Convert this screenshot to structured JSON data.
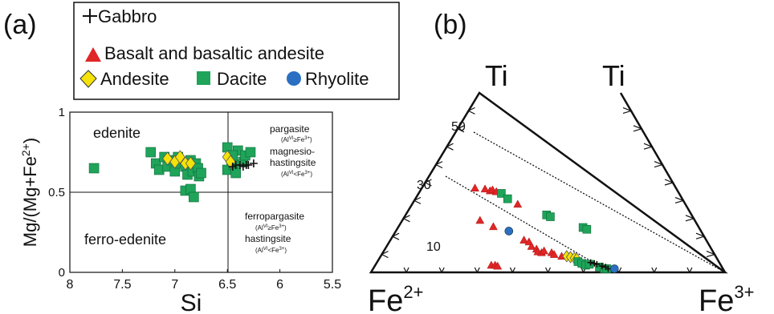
{
  "panel_labels": {
    "a": "(a)",
    "b": "(b)"
  },
  "legend": {
    "gabbro": "Gabbro",
    "basalt": "Basalt and basaltic andesite",
    "andesite": "Andesite",
    "dacite": "Dacite",
    "rhyolite": "Rhyolite"
  },
  "colors": {
    "basalt": "#e02626",
    "andesite": "#f5e20a",
    "dacite": "#1fa45a",
    "rhyolite": "#2a6fc1",
    "gabbro": "#111111"
  },
  "chart_data": [
    {
      "type": "scatter",
      "xlabel": "Si",
      "ylabel": "Mg/(Mg+Fe2+)",
      "ylabel_main": "Mg/(Mg+Fe",
      "ylabel_sup": "2+",
      "ylabel_end": ")",
      "xlim": [
        8,
        5.5
      ],
      "ylim": [
        0,
        1
      ],
      "x_ticks": [
        "8",
        "7.5",
        "7",
        "6.5",
        "6",
        "5.5"
      ],
      "y_ticks": [
        "0",
        "0.5",
        "1"
      ],
      "region_labels": {
        "edenite": "edenite",
        "ferro_edenite": "ferro-edenite",
        "pargasite": "pargasite",
        "pargasite_cond": "(Al",
        "pargasite_cond_sup": "VI",
        "pargasite_cond_end": "≥Fe",
        "pargasite_cond_sup2": "3+",
        "pargasite_cond_close": ")",
        "mh1": "magnesio-",
        "mh2": "hastingsite",
        "mh_cond": "(Al",
        "mh_cond_sup": "VI",
        "mh_cond_end": "<Fe",
        "mh_cond_sup2": "3+",
        "mh_cond_close": ")",
        "ferropargasite": "ferropargasite",
        "fp_cond": "(Al",
        "fp_cond_sup": "VI",
        "fp_cond_end": "≥Fe",
        "fp_cond_sup2": "3+",
        "fp_cond_close": ")",
        "hastingsite": "hastingsite",
        "h_cond": "(Al",
        "h_cond_sup": "VI",
        "h_cond_end": "<Fe",
        "h_cond_sup2": "3+",
        "h_cond_close": ")"
      },
      "series": [
        {
          "name": "Dacite",
          "marker": "square",
          "points": [
            [
              7.77,
              0.65
            ],
            [
              7.23,
              0.75
            ],
            [
              7.18,
              0.68
            ],
            [
              7.15,
              0.64
            ],
            [
              7.1,
              0.72
            ],
            [
              7.07,
              0.66
            ],
            [
              7.03,
              0.7
            ],
            [
              7.0,
              0.63
            ],
            [
              6.97,
              0.72
            ],
            [
              6.95,
              0.68
            ],
            [
              6.9,
              0.66
            ],
            [
              6.88,
              0.61
            ],
            [
              6.85,
              0.7
            ],
            [
              6.83,
              0.63
            ],
            [
              6.8,
              0.68
            ],
            [
              6.78,
              0.65
            ],
            [
              6.77,
              0.6
            ],
            [
              6.75,
              0.62
            ],
            [
              6.9,
              0.51
            ],
            [
              6.85,
              0.52
            ],
            [
              6.82,
              0.47
            ],
            [
              6.5,
              0.64
            ],
            [
              6.46,
              0.7
            ],
            [
              6.44,
              0.67
            ],
            [
              6.42,
              0.62
            ],
            [
              6.4,
              0.76
            ],
            [
              6.35,
              0.69
            ],
            [
              6.33,
              0.73
            ],
            [
              6.28,
              0.75
            ],
            [
              6.5,
              0.78
            ],
            [
              6.45,
              0.73
            ]
          ]
        },
        {
          "name": "Andesite",
          "marker": "diamond",
          "points": [
            [
              7.07,
              0.71
            ],
            [
              7.0,
              0.69
            ],
            [
              6.95,
              0.72
            ],
            [
              6.9,
              0.68
            ],
            [
              6.85,
              0.68
            ],
            [
              6.5,
              0.72
            ],
            [
              6.47,
              0.69
            ]
          ]
        },
        {
          "name": "Gabbro",
          "marker": "plus",
          "points": [
            [
              6.42,
              0.67
            ],
            [
              6.38,
              0.67
            ],
            [
              6.35,
              0.66
            ],
            [
              6.32,
              0.67
            ],
            [
              6.3,
              0.67
            ],
            [
              6.25,
              0.68
            ],
            [
              6.45,
              0.66
            ]
          ]
        }
      ]
    },
    {
      "type": "scatter",
      "subtype": "ternary",
      "vertex_labels": {
        "left": "Fe",
        "left_sup": "2+",
        "right": "Fe",
        "right_sup": "3+",
        "top": "Ti",
        "top2": "Ti"
      },
      "tick_labels": [
        "10",
        "30",
        "50"
      ],
      "series": [
        {
          "name": "Basalt and basaltic andesite",
          "marker": "triangle",
          "points": [
            [
              0.5,
              0.47
            ],
            [
              4.5,
              0.465
            ],
            [
              6.5,
              0.455
            ],
            [
              7.5,
              0.46
            ],
            [
              9,
              0.45
            ],
            [
              17.5,
              0.38
            ],
            [
              7,
              0.04
            ],
            [
              8.5,
              0.04
            ],
            [
              9.5,
              0.035
            ],
            [
              2.5,
              0.29
            ],
            [
              7.8,
              0.255
            ],
            [
              20,
              0.18
            ],
            [
              22,
              0.17
            ],
            [
              23,
              0.145
            ],
            [
              25,
              0.13
            ],
            [
              25.5,
              0.115
            ],
            [
              27,
              0.11
            ],
            [
              28,
              0.12
            ],
            [
              31,
              0.11
            ],
            [
              32,
              0.1
            ],
            [
              35,
              0.09
            ]
          ]
        },
        {
          "name": "Andesite",
          "marker": "diamond",
          "points": [
            [
              37,
              0.09
            ],
            [
              38.5,
              0.085
            ],
            [
              40,
              0.08
            ],
            [
              41,
              0.075
            ]
          ]
        },
        {
          "name": "Dacite",
          "marker": "square",
          "points": [
            [
              11,
              0.44
            ],
            [
              13.5,
              0.41
            ],
            [
              29,
              0.32
            ],
            [
              30.5,
              0.31
            ],
            [
              43.5,
              0.25
            ],
            [
              45,
              0.24
            ],
            [
              41.5,
              0.06
            ],
            [
              43,
              0.05
            ],
            [
              44.5,
              0.04
            ],
            [
              46,
              0.045
            ],
            [
              50,
              0.03
            ],
            [
              52,
              0.02
            ],
            [
              53,
              0.02
            ]
          ]
        },
        {
          "name": "Gabbro",
          "marker": "plus",
          "points": [
            [
              46.5,
              0.055
            ],
            [
              48,
              0.05
            ],
            [
              49,
              0.045
            ],
            [
              51,
              0.035
            ],
            [
              52.5,
              0.03
            ],
            [
              53.5,
              0.02
            ]
          ]
        },
        {
          "name": "Rhyolite",
          "marker": "circle",
          "points": [
            [
              14,
              0.23
            ],
            [
              56,
              0.02
            ]
          ]
        }
      ]
    }
  ]
}
